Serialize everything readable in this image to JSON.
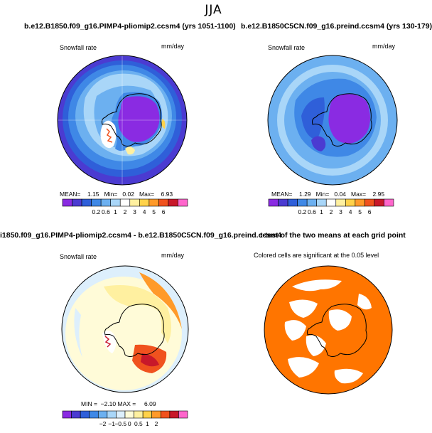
{
  "page": {
    "title": "JJA"
  },
  "panels": [
    {
      "title": "b.e12.B1850.f09_g16.PIMP4-pliomip2.ccsm4 (yrs 1051-1100)",
      "label_left": "Snowfall rate",
      "label_right": "mm/day",
      "stats": {
        "mean_label": "MEAN=",
        "mean": "1.15",
        "min_label": "Min=",
        "min": "0.02",
        "max_label": "Max=",
        "max": "6.93"
      }
    },
    {
      "title": "b.e12.B1850C5CN.f09_g16.preind.ccsm4 (yrs 130-179)",
      "label_left": "Snowfall rate",
      "label_right": "mm/day",
      "stats": {
        "mean_label": "MEAN=",
        "mean": "1.29",
        "min_label": "Min=",
        "min": "0.04",
        "max_label": "Max=",
        "max": "2.95"
      }
    },
    {
      "title": "i1850.f09_g16.PIMP4-pliomip2.ccsm4 - b.e12.B1850C5CN.f09_g16.preind.ccsm4",
      "label_left": "Snowfall rate",
      "label_right": "mm/day",
      "stats_text": "MIN =  −2.10 MAX =     6.09"
    },
    {
      "title": "t-test of the two means at each grid point",
      "subtitle": "Colored cells are significant at the 0.05 level"
    }
  ],
  "colors": {
    "abs_scale": [
      "#8a2be2",
      "#4b3bd1",
      "#2f5fd9",
      "#3f88e6",
      "#6cb0f0",
      "#a9d6f8",
      "#ffffff",
      "#fff0a0",
      "#ffd24a",
      "#ff9a2a",
      "#f0521e",
      "#c8182a",
      "#ff66cc"
    ],
    "diff_scale": [
      "#8a2be2",
      "#4b3bd1",
      "#2f5fd9",
      "#3f88e6",
      "#6cb0f0",
      "#a9d6f8",
      "#ddeffc",
      "#fffbd8",
      "#fff0a0",
      "#ffd24a",
      "#ff9a2a",
      "#f0521e",
      "#c8182a",
      "#ff66cc"
    ],
    "significance": "#ff7500"
  },
  "chart_data": [
    {
      "type": "heatmap",
      "title": "b.e12.B1850.f09_g16.PIMP4-pliomip2.ccsm4 (yrs 1051-1100)",
      "variable": "Snowfall rate",
      "units": "mm/day",
      "colorbar_ticks": [
        "0.2",
        "0.6",
        "1",
        "2",
        "3",
        "4",
        "5",
        "6"
      ],
      "mean": 1.15,
      "min": 0.02,
      "max": 6.93
    },
    {
      "type": "heatmap",
      "title": "b.e12.B1850C5CN.f09_g16.preind.ccsm4 (yrs 130-179)",
      "variable": "Snowfall rate",
      "units": "mm/day",
      "colorbar_ticks": [
        "0.2",
        "0.6",
        "1",
        "2",
        "3",
        "4",
        "5",
        "6"
      ],
      "mean": 1.29,
      "min": 0.04,
      "max": 2.95
    },
    {
      "type": "heatmap",
      "title": "i1850.f09_g16.PIMP4-pliomip2.ccsm4 - b.e12.B1850C5CN.f09_g16.preind.ccsm4",
      "variable": "Snowfall rate",
      "units": "mm/day",
      "colorbar_ticks": [
        "−2",
        "−1",
        "−0.5",
        "0",
        "0.5",
        "1",
        "2"
      ],
      "min": -2.1,
      "max": 6.09
    },
    {
      "type": "heatmap",
      "title": "t-test of the two means at each grid point",
      "note": "Colored cells are significant at the 0.05 level"
    }
  ]
}
